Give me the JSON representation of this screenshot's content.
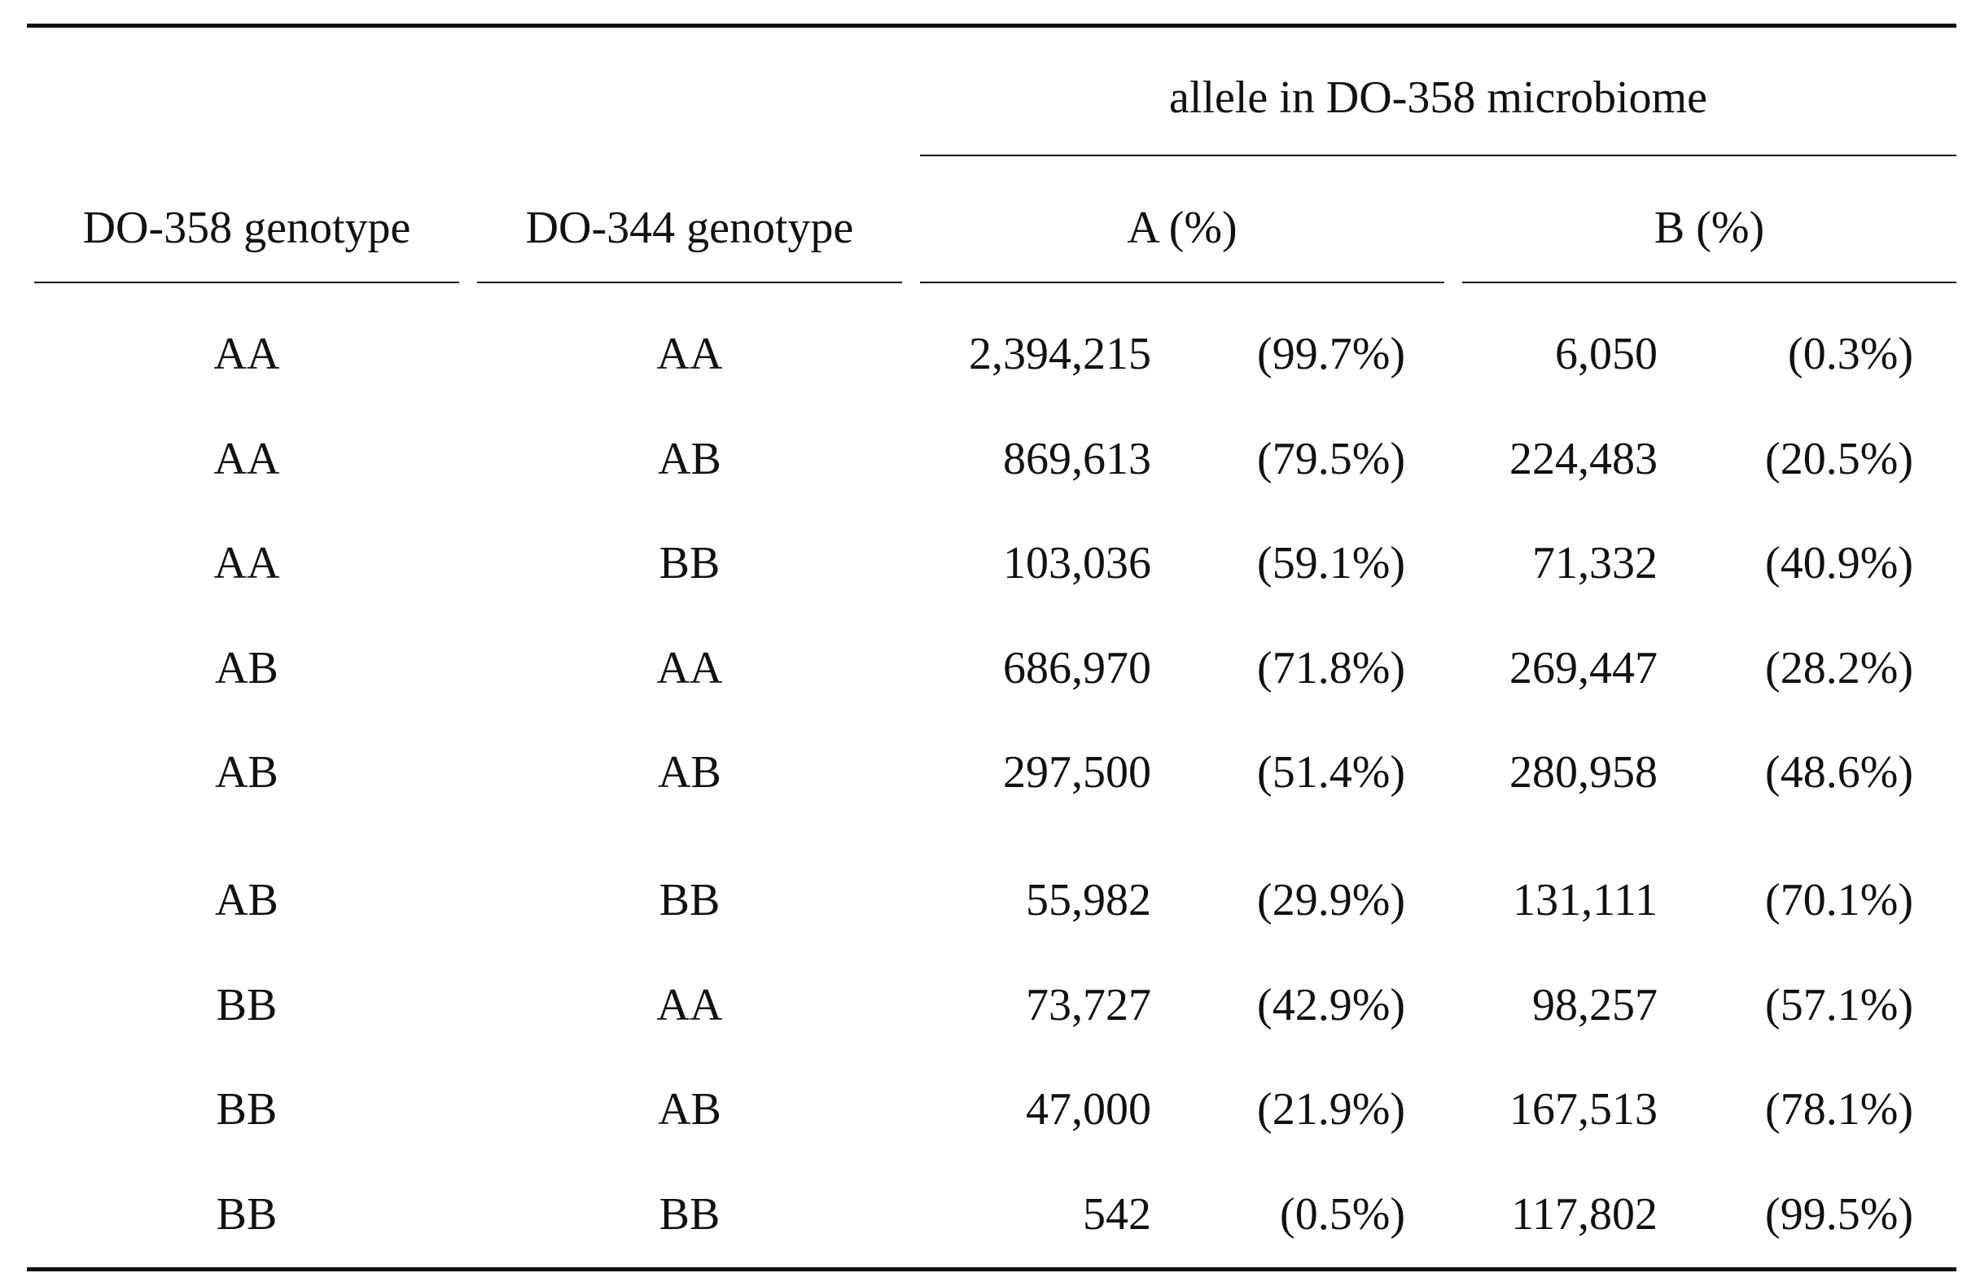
{
  "table": {
    "spanning_header": "allele in DO-358 microbiome",
    "col_headers": {
      "do358": "DO-358 genotype",
      "do344": "DO-344 genotype",
      "a": "A (%)",
      "b": "B (%)"
    },
    "rows": [
      {
        "do358": "AA",
        "do344": "AA",
        "a_count": "2,394,215",
        "a_pct": "(99.7%)",
        "b_count": "6,050",
        "b_pct": "(0.3%)"
      },
      {
        "do358": "AA",
        "do344": "AB",
        "a_count": "869,613",
        "a_pct": "(79.5%)",
        "b_count": "224,483",
        "b_pct": "(20.5%)"
      },
      {
        "do358": "AA",
        "do344": "BB",
        "a_count": "103,036",
        "a_pct": "(59.1%)",
        "b_count": "71,332",
        "b_pct": "(40.9%)"
      },
      {
        "do358": "AB",
        "do344": "AA",
        "a_count": "686,970",
        "a_pct": "(71.8%)",
        "b_count": "269,447",
        "b_pct": "(28.2%)"
      },
      {
        "do358": "AB",
        "do344": "AB",
        "a_count": "297,500",
        "a_pct": "(51.4%)",
        "b_count": "280,958",
        "b_pct": "(48.6%)"
      },
      {
        "do358": "AB",
        "do344": "BB",
        "a_count": "55,982",
        "a_pct": "(29.9%)",
        "b_count": "131,111",
        "b_pct": "(70.1%)"
      },
      {
        "do358": "BB",
        "do344": "AA",
        "a_count": "73,727",
        "a_pct": "(42.9%)",
        "b_count": "98,257",
        "b_pct": "(57.1%)"
      },
      {
        "do358": "BB",
        "do344": "AB",
        "a_count": "47,000",
        "a_pct": "(21.9%)",
        "b_count": "167,513",
        "b_pct": "(78.1%)"
      },
      {
        "do358": "BB",
        "do344": "BB",
        "a_count": "542",
        "a_pct": "(0.5%)",
        "b_count": "117,802",
        "b_pct": "(99.5%)"
      }
    ]
  }
}
